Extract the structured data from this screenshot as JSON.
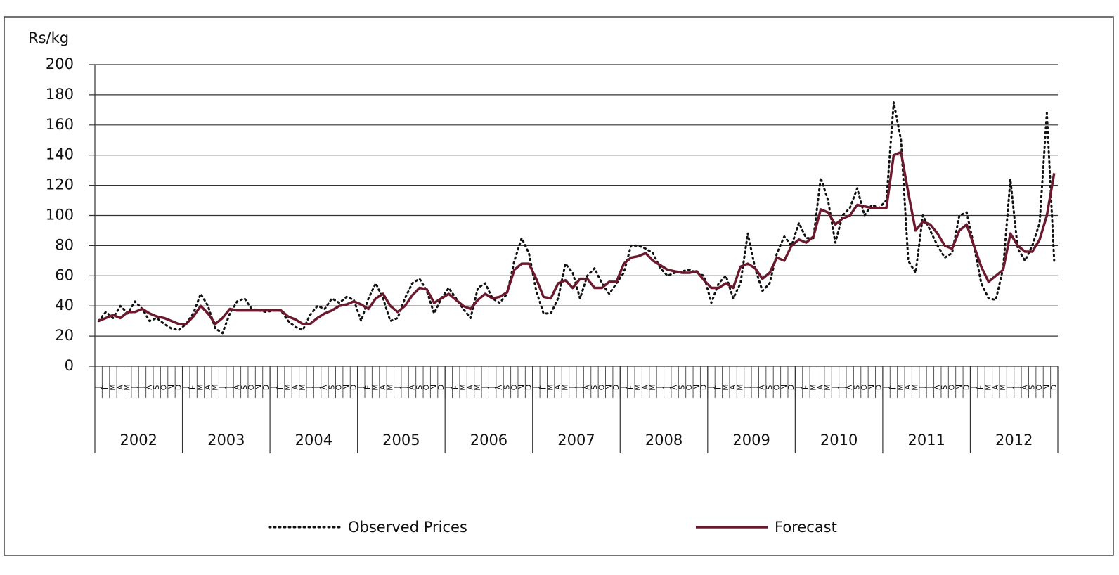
{
  "chart_data": {
    "type": "line",
    "y_label": "Rs/kg",
    "categories": [
      "J",
      "F",
      "M",
      "A",
      "M",
      "J",
      "J",
      "A",
      "S",
      "O",
      "N",
      "D",
      "J",
      "F",
      "M",
      "A",
      "M",
      "J",
      "J",
      "A",
      "S",
      "O",
      "N",
      "D",
      "J",
      "F",
      "M",
      "A",
      "M",
      "J",
      "J",
      "A",
      "S",
      "O",
      "N",
      "D",
      "J",
      "F",
      "M",
      "A",
      "M",
      "J",
      "J",
      "A",
      "S",
      "O",
      "N",
      "D",
      "J",
      "F",
      "M",
      "A",
      "M",
      "J",
      "J",
      "A",
      "S",
      "O",
      "N",
      "D",
      "J",
      "F",
      "M",
      "A",
      "M",
      "J",
      "J",
      "A",
      "S",
      "O",
      "N",
      "D",
      "J",
      "F",
      "M",
      "A",
      "M",
      "J",
      "J",
      "A",
      "S",
      "O",
      "N",
      "D",
      "J",
      "F",
      "M",
      "A",
      "M",
      "J",
      "J",
      "A",
      "S",
      "O",
      "N",
      "D",
      "J",
      "F",
      "M",
      "A",
      "M",
      "J",
      "J",
      "A",
      "S",
      "O",
      "N",
      "D",
      "J",
      "F",
      "M",
      "A",
      "M",
      "J",
      "J",
      "A",
      "S",
      "O",
      "N",
      "D",
      "J",
      "F",
      "M",
      "A",
      "M",
      "J",
      "J",
      "A",
      "S",
      "O",
      "N",
      "D"
    ],
    "years": [
      "2002",
      "2003",
      "2004",
      "2005",
      "2006",
      "2007",
      "2008",
      "2009",
      "2010",
      "2011",
      "2012"
    ],
    "series": [
      {
        "name": "Observed Prices",
        "color": "#111111",
        "style": "dotted",
        "values": [
          30,
          36,
          32,
          40,
          35,
          43,
          38,
          30,
          32,
          28,
          25,
          24,
          28,
          35,
          48,
          40,
          25,
          22,
          35,
          43,
          45,
          38,
          37,
          36,
          37,
          37,
          30,
          26,
          24,
          34,
          40,
          38,
          45,
          42,
          46,
          44,
          30,
          45,
          55,
          45,
          30,
          32,
          45,
          55,
          58,
          50,
          35,
          45,
          52,
          45,
          38,
          32,
          52,
          55,
          45,
          42,
          48,
          70,
          85,
          75,
          50,
          35,
          35,
          45,
          68,
          62,
          45,
          60,
          65,
          55,
          48,
          55,
          62,
          80,
          80,
          78,
          75,
          65,
          60,
          62,
          63,
          64,
          62,
          60,
          42,
          55,
          60,
          45,
          55,
          88,
          65,
          50,
          55,
          75,
          86,
          80,
          95,
          85,
          85,
          125,
          110,
          82,
          100,
          105,
          118,
          100,
          107,
          105,
          110,
          175,
          150,
          70,
          62,
          100,
          90,
          80,
          72,
          75,
          100,
          102,
          80,
          55,
          45,
          44,
          65,
          124,
          78,
          70,
          80,
          95,
          168,
          70
        ]
      },
      {
        "name": "Forecast",
        "color": "#6b1a2e",
        "style": "solid",
        "values": [
          30,
          32,
          34,
          32,
          36,
          36,
          38,
          35,
          33,
          32,
          30,
          28,
          28,
          33,
          40,
          35,
          28,
          32,
          38,
          37,
          37,
          37,
          37,
          37,
          37,
          37,
          33,
          31,
          28,
          28,
          32,
          35,
          37,
          40,
          41,
          43,
          41,
          38,
          45,
          48,
          40,
          36,
          40,
          47,
          52,
          51,
          42,
          45,
          48,
          44,
          40,
          38,
          44,
          48,
          45,
          46,
          49,
          64,
          68,
          68,
          58,
          46,
          45,
          55,
          57,
          52,
          58,
          58,
          52,
          52,
          56,
          56,
          68,
          72,
          73,
          75,
          70,
          67,
          64,
          63,
          62,
          62,
          63,
          57,
          52,
          52,
          55,
          52,
          66,
          68,
          65,
          58,
          62,
          72,
          70,
          80,
          84,
          82,
          86,
          104,
          102,
          94,
          98,
          100,
          107,
          106,
          105,
          105,
          105,
          140,
          142,
          115,
          90,
          96,
          94,
          88,
          80,
          78,
          90,
          94,
          80,
          66,
          56,
          60,
          64,
          88,
          80,
          76,
          76,
          84,
          100,
          128
        ]
      }
    ],
    "ylim": [
      0,
      200
    ],
    "yticks": [
      0,
      20,
      40,
      60,
      80,
      100,
      120,
      140,
      160,
      180,
      200
    ],
    "grid": true,
    "legend": "bottom"
  }
}
